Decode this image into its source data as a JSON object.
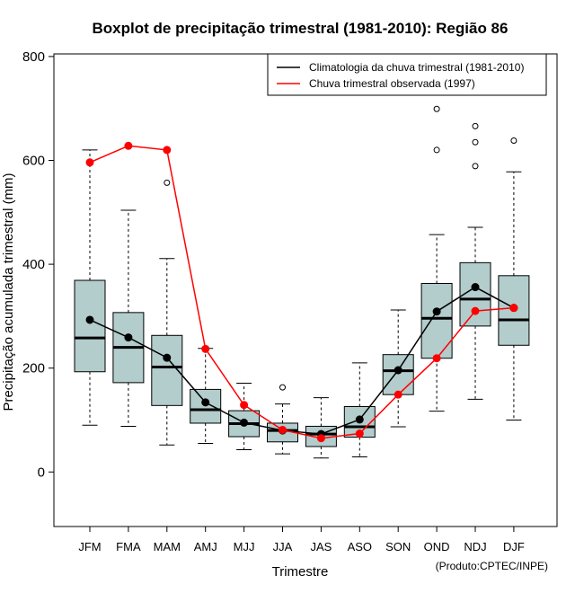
{
  "chart_data": {
    "type": "boxplot",
    "title": "Boxplot de precipitação trimestral (1981-2010): Região 86",
    "xlabel": "Trimestre",
    "ylabel": "Precipitação acumulada trimestral (mm)",
    "ylim": [
      -105,
      805
    ],
    "yticks": [
      0,
      200,
      400,
      600,
      800
    ],
    "categories": [
      "JFM",
      "FMA",
      "MAM",
      "AMJ",
      "MJJ",
      "JJA",
      "JAS",
      "ASO",
      "SON",
      "OND",
      "NDJ",
      "DJF"
    ],
    "boxes": [
      {
        "whisker_low": 90,
        "q1": 193,
        "median": 258,
        "q3": 369,
        "whisker_high": 620,
        "outliers": []
      },
      {
        "whisker_low": 88,
        "q1": 172,
        "median": 240,
        "q3": 307,
        "whisker_high": 504,
        "outliers": []
      },
      {
        "whisker_low": 52,
        "q1": 128,
        "median": 202,
        "q3": 263,
        "whisker_high": 411,
        "outliers": [
          557
        ]
      },
      {
        "whisker_low": 55,
        "q1": 94,
        "median": 120,
        "q3": 159,
        "whisker_high": 238,
        "outliers": []
      },
      {
        "whisker_low": 43,
        "q1": 68,
        "median": 93,
        "q3": 118,
        "whisker_high": 171,
        "outliers": []
      },
      {
        "whisker_low": 35,
        "q1": 58,
        "median": 80,
        "q3": 94,
        "whisker_high": 131,
        "outliers": [
          163
        ]
      },
      {
        "whisker_low": 27,
        "q1": 49,
        "median": 73,
        "q3": 88,
        "whisker_high": 143,
        "outliers": []
      },
      {
        "whisker_low": 29,
        "q1": 67,
        "median": 87,
        "q3": 126,
        "whisker_high": 210,
        "outliers": []
      },
      {
        "whisker_low": 87,
        "q1": 149,
        "median": 195,
        "q3": 226,
        "whisker_high": 312,
        "outliers": []
      },
      {
        "whisker_low": 117,
        "q1": 219,
        "median": 296,
        "q3": 363,
        "whisker_high": 457,
        "outliers": [
          620,
          699
        ]
      },
      {
        "whisker_low": 140,
        "q1": 281,
        "median": 333,
        "q3": 403,
        "whisker_high": 471,
        "outliers": [
          589,
          635,
          666
        ]
      },
      {
        "whisker_low": 100,
        "q1": 244,
        "median": 293,
        "q3": 378,
        "whisker_high": 578,
        "outliers": [
          638
        ]
      }
    ],
    "series": [
      {
        "name": "Climatologia da chuva trimestral (1981-2010)",
        "color": "#000000",
        "values": [
          293,
          259,
          220,
          134,
          95,
          80,
          73,
          101,
          196,
          309,
          356,
          316
        ]
      },
      {
        "name": "Chuva trimestral observada (1997)",
        "color": "#ff0000",
        "values": [
          596,
          628,
          620,
          237,
          129,
          81,
          65,
          74,
          149,
          219,
          310,
          316
        ]
      }
    ],
    "box_fill": "#b3cccc",
    "legend_position": "top-right",
    "credit": "(Produto:CPTEC/INPE)"
  }
}
